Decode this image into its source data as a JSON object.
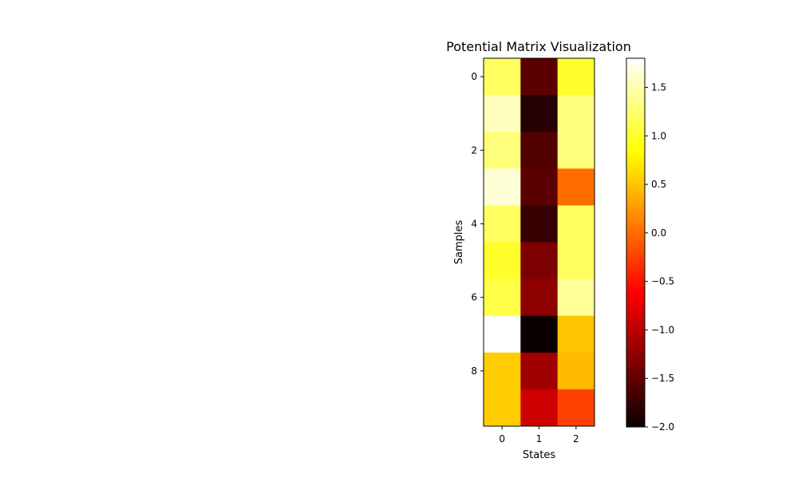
{
  "chart_data": {
    "type": "heatmap",
    "title": "Potential Matrix Visualization",
    "xlabel": "States",
    "ylabel": "Samples",
    "colormap": "hot",
    "rows": [
      0,
      1,
      2,
      3,
      4,
      5,
      6,
      7,
      8,
      9
    ],
    "columns": [
      0,
      1,
      2
    ],
    "x_ticks": [
      "0",
      "1",
      "2"
    ],
    "y_ticks": [
      "0",
      "2",
      "4",
      "6",
      "8"
    ],
    "values": [
      [
        1.2,
        -1.55,
        1.0
      ],
      [
        1.55,
        -1.85,
        1.3
      ],
      [
        1.3,
        -1.6,
        1.3
      ],
      [
        1.65,
        -1.55,
        0.0
      ],
      [
        1.2,
        -1.75,
        1.2
      ],
      [
        1.0,
        -1.35,
        1.2
      ],
      [
        1.1,
        -1.25,
        1.4
      ],
      [
        1.8,
        -2.0,
        0.5
      ],
      [
        0.55,
        -1.15,
        0.45
      ],
      [
        0.55,
        -0.9,
        -0.25
      ]
    ],
    "colorbar": {
      "range": [
        -2.0,
        1.8
      ],
      "ticks": [
        "−2.0",
        "−1.5",
        "−1.0",
        "−0.5",
        "0.0",
        "0.5",
        "1.0",
        "1.5"
      ],
      "tick_values": [
        -2.0,
        -1.5,
        -1.0,
        -0.5,
        0.0,
        0.5,
        1.0,
        1.5
      ]
    },
    "grid": false
  }
}
